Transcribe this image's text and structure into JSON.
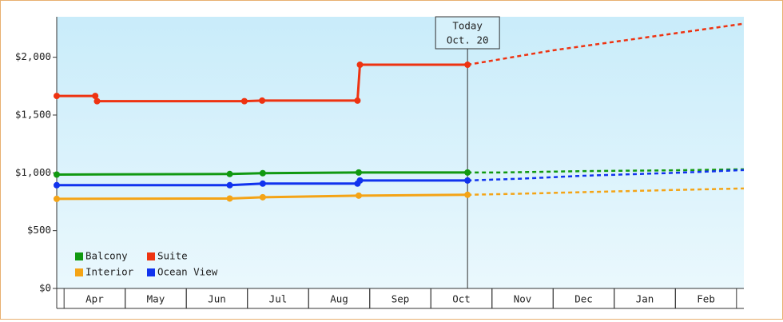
{
  "chart_data": {
    "type": "line",
    "xlim": [
      -0.12,
      11.12
    ],
    "xticks": [
      {
        "value": 0.5,
        "label": "Apr"
      },
      {
        "value": 1.5,
        "label": "May"
      },
      {
        "value": 2.5,
        "label": "Jun"
      },
      {
        "value": 3.5,
        "label": "Jul"
      },
      {
        "value": 4.5,
        "label": "Aug"
      },
      {
        "value": 5.5,
        "label": "Sep"
      },
      {
        "value": 6.5,
        "label": "Oct"
      },
      {
        "value": 7.5,
        "label": "Nov"
      },
      {
        "value": 8.5,
        "label": "Dec"
      },
      {
        "value": 9.5,
        "label": "Jan"
      },
      {
        "value": 10.5,
        "label": "Feb"
      }
    ],
    "ylim": [
      0,
      2350
    ],
    "yticks": [
      {
        "value": 0,
        "label": "$0"
      },
      {
        "value": 500,
        "label": "$500"
      },
      {
        "value": 1000,
        "label": "$1,000"
      },
      {
        "value": 1500,
        "label": "$1,500"
      },
      {
        "value": 2000,
        "label": "$2,000"
      }
    ],
    "legend": "bottom-left",
    "annotation": {
      "x": 6.6,
      "lines": [
        "Today",
        "Oct. 20"
      ]
    },
    "series": [
      {
        "name": "Balcony",
        "color": "#119911",
        "x": [
          -0.12,
          2.71,
          3.25,
          4.82,
          6.6
        ],
        "values": [
          985,
          990,
          997,
          1003,
          1003
        ],
        "forecast_x": [
          6.6,
          7.15,
          8.5,
          10.0,
          11.12
        ],
        "forecast_values": [
          1003,
          1003,
          1015,
          1022,
          1031
        ]
      },
      {
        "name": "Suite",
        "color": "#ee3311",
        "x": [
          -0.12,
          0.51,
          0.54,
          2.95,
          3.24,
          4.8,
          4.84,
          6.6
        ],
        "values": [
          1665,
          1665,
          1620,
          1620,
          1625,
          1625,
          1935,
          1935
        ],
        "forecast_x": [
          6.6,
          8.0,
          9.5,
          11.12
        ],
        "forecast_values": [
          1935,
          2060,
          2170,
          2290
        ]
      },
      {
        "name": "Interior",
        "color": "#f4a416",
        "x": [
          -0.12,
          2.71,
          3.25,
          4.82,
          6.6
        ],
        "values": [
          775,
          778,
          789,
          803,
          810
        ],
        "forecast_x": [
          6.6,
          7.5,
          8.5,
          10.0,
          11.12
        ],
        "forecast_values": [
          810,
          820,
          833,
          852,
          865
        ]
      },
      {
        "name": "Ocean View",
        "color": "#1133ee",
        "x": [
          -0.12,
          2.71,
          3.25,
          4.8,
          4.84,
          6.6
        ],
        "values": [
          893,
          893,
          907,
          907,
          934,
          934
        ],
        "forecast_x": [
          6.6,
          7.5,
          8.5,
          10.0,
          11.12
        ],
        "forecast_values": [
          934,
          950,
          975,
          1000,
          1024
        ]
      }
    ]
  }
}
